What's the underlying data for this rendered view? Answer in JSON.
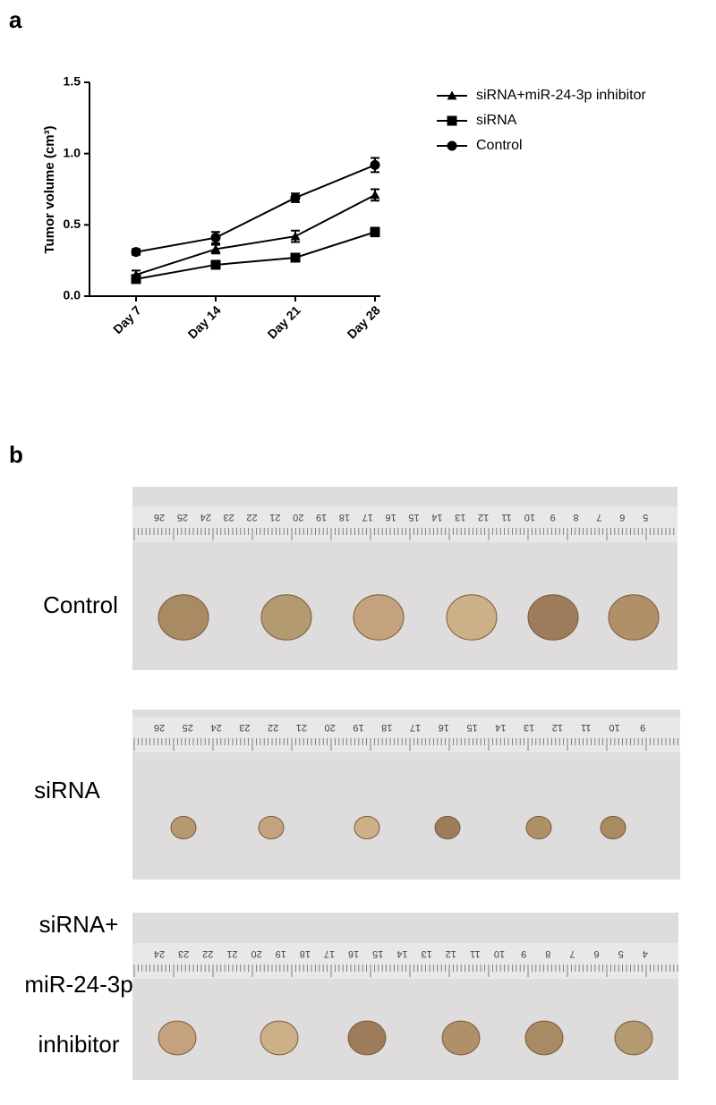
{
  "panel_a_label": "a",
  "chart_data": {
    "type": "line",
    "y_label": "Tumor volume (cm³)",
    "categories": [
      "Day 7",
      "Day 14",
      "Day 21",
      "Day 28"
    ],
    "ylim": [
      0,
      1.5
    ],
    "yticks": [
      {
        "value": 0,
        "label": "0.0"
      },
      0.5,
      {
        "value": 1,
        "label": "1.0"
      },
      1.5
    ],
    "legend": "top-right",
    "series": [
      {
        "name": "siRNA+miR-24-3p inhibitor",
        "color": "#000000",
        "marker": "triangle",
        "values": [
          0.15,
          0.33,
          0.42,
          0.71
        ],
        "errors": [
          0.03,
          0.03,
          0.04,
          0.04
        ]
      },
      {
        "name": "siRNA",
        "color": "#000000",
        "marker": "square",
        "values": [
          0.12,
          0.22,
          0.27,
          0.45
        ],
        "errors": [
          0.02,
          0.01,
          0.02,
          0.03
        ]
      },
      {
        "name": "Control",
        "color": "#000000",
        "marker": "circle",
        "values": [
          0.31,
          0.41,
          0.69,
          0.92
        ],
        "errors": [
          0.02,
          0.04,
          0.03,
          0.05
        ]
      }
    ]
  },
  "panel_b_label": "b",
  "photos": [
    {
      "label_lines": [
        "Control"
      ],
      "ruler": [
        26,
        25,
        24,
        23,
        22,
        21,
        20,
        19,
        18,
        17,
        16,
        15,
        14,
        13,
        12,
        11,
        10,
        9,
        8,
        7,
        6,
        5
      ]
    },
    {
      "label_lines": [
        "siRNA"
      ],
      "ruler": [
        26,
        25,
        24,
        23,
        22,
        21,
        20,
        19,
        18,
        17,
        16,
        15,
        14,
        13,
        12,
        11,
        10,
        9
      ]
    },
    {
      "label_lines": [
        "siRNA+",
        "miR-24-3p",
        "inhibitor"
      ],
      "ruler": [
        24,
        23,
        22,
        21,
        20,
        19,
        18,
        17,
        16,
        15,
        14,
        13,
        12,
        11,
        10,
        9,
        8,
        7,
        6,
        5,
        4
      ]
    }
  ]
}
